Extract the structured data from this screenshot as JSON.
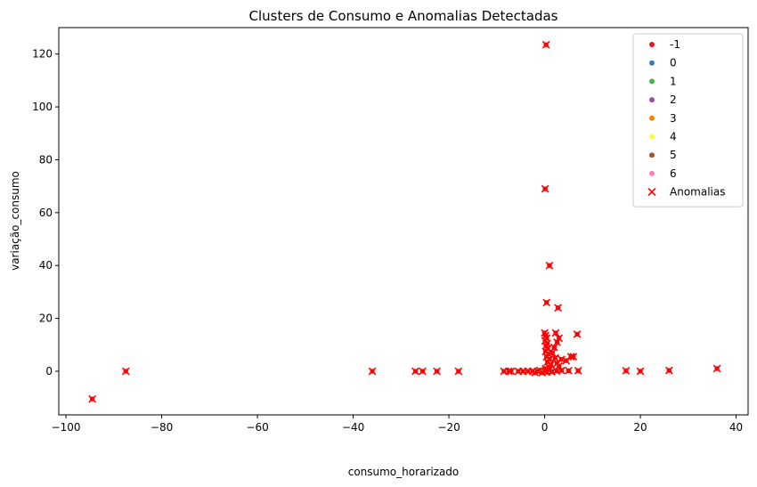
{
  "chart_data": {
    "type": "scatter",
    "title": "Clusters de Consumo e Anomalias Detectadas",
    "xlabel": "consumo_horarizado",
    "ylabel": "variação_consumo",
    "xlim": [
      -101.5,
      42.5
    ],
    "ylim": [
      -16.5,
      130
    ],
    "xticks": [
      -100,
      -80,
      -60,
      -40,
      -20,
      0,
      20,
      40
    ],
    "yticks": [
      0,
      20,
      40,
      60,
      80,
      100,
      120
    ],
    "grid": false,
    "legend_position": "top-right",
    "legend": [
      {
        "label": "-1",
        "color": "#e41a1c",
        "marker": "circle"
      },
      {
        "label": "0",
        "color": "#377eb8",
        "marker": "circle"
      },
      {
        "label": "1",
        "color": "#4daf4a",
        "marker": "circle"
      },
      {
        "label": "2",
        "color": "#984ea3",
        "marker": "circle"
      },
      {
        "label": "3",
        "color": "#ff7f00",
        "marker": "circle"
      },
      {
        "label": "4",
        "color": "#ffff33",
        "marker": "circle"
      },
      {
        "label": "5",
        "color": "#a65628",
        "marker": "circle"
      },
      {
        "label": "6",
        "color": "#f781bf",
        "marker": "circle"
      },
      {
        "label": "Anomalias",
        "color": "#ff0000",
        "marker": "x"
      }
    ],
    "series": [
      {
        "name": "-1",
        "color": "#e41a1c",
        "marker": "circle",
        "points": [
          [
            -94.5,
            -10.5
          ],
          [
            -87.5,
            0
          ],
          [
            -36,
            0
          ],
          [
            -27,
            0
          ],
          [
            -25.5,
            0
          ],
          [
            -22.5,
            0
          ],
          [
            -18,
            0
          ],
          [
            -8.5,
            0
          ],
          [
            -7.5,
            0
          ],
          [
            -7,
            0
          ],
          [
            -5.5,
            0
          ],
          [
            -4.5,
            0
          ],
          [
            -3.5,
            0
          ],
          [
            -2.5,
            0
          ],
          [
            -2,
            -0.5
          ],
          [
            -1.5,
            0
          ],
          [
            -1,
            0.3
          ],
          [
            -0.5,
            -0.5
          ],
          [
            0,
            0
          ],
          [
            0.2,
            1
          ],
          [
            0.5,
            -0.3
          ],
          [
            1,
            0.5
          ],
          [
            0.3,
            123.5
          ],
          [
            0.1,
            69
          ],
          [
            1,
            40
          ],
          [
            0.4,
            26
          ],
          [
            2.8,
            24
          ],
          [
            0,
            14.5
          ],
          [
            0.2,
            13.5
          ],
          [
            0.4,
            12.5
          ],
          [
            0.1,
            11.5
          ],
          [
            0.5,
            10.5
          ],
          [
            0.3,
            9.5
          ],
          [
            0.6,
            8.5
          ],
          [
            0.2,
            7.5
          ],
          [
            0.8,
            6.5
          ],
          [
            0.4,
            5.5
          ],
          [
            1,
            4.5
          ],
          [
            0.6,
            3.5
          ],
          [
            1.3,
            2.5
          ],
          [
            0.9,
            1.5
          ],
          [
            1.6,
            7
          ],
          [
            2,
            9
          ],
          [
            2.3,
            14.5
          ],
          [
            2.6,
            11
          ],
          [
            3,
            12.5
          ],
          [
            2.2,
            5
          ],
          [
            2.6,
            3
          ],
          [
            3,
            2
          ],
          [
            3.5,
            4.5
          ],
          [
            4.5,
            4
          ],
          [
            5.5,
            5.5
          ],
          [
            6,
            5.5
          ],
          [
            6.8,
            14
          ],
          [
            5,
            0.2
          ],
          [
            7,
            0.2
          ],
          [
            3.5,
            0.3
          ],
          [
            2.5,
            0.1
          ],
          [
            1.5,
            -0.2
          ],
          [
            17,
            0.2
          ],
          [
            20,
            0
          ],
          [
            26,
            0.3
          ],
          [
            36,
            1
          ]
        ]
      },
      {
        "name": "Anomalias",
        "color": "#ff0000",
        "marker": "x",
        "points": [
          [
            -94.5,
            -10.5
          ],
          [
            -87.5,
            0
          ],
          [
            -36,
            0
          ],
          [
            -27,
            0
          ],
          [
            -25.5,
            0
          ],
          [
            -22.5,
            0
          ],
          [
            -18,
            0
          ],
          [
            -8.5,
            0
          ],
          [
            -7.5,
            0
          ],
          [
            -7,
            0
          ],
          [
            -5.5,
            0
          ],
          [
            -4.5,
            0
          ],
          [
            -3.5,
            0
          ],
          [
            -2.5,
            0
          ],
          [
            -2,
            -0.5
          ],
          [
            -1.5,
            0
          ],
          [
            -1,
            0.3
          ],
          [
            -0.5,
            -0.5
          ],
          [
            0,
            0
          ],
          [
            0.2,
            1
          ],
          [
            0.5,
            -0.3
          ],
          [
            1,
            0.5
          ],
          [
            0.3,
            123.5
          ],
          [
            0.1,
            69
          ],
          [
            1,
            40
          ],
          [
            0.4,
            26
          ],
          [
            2.8,
            24
          ],
          [
            0,
            14.5
          ],
          [
            0.2,
            13.5
          ],
          [
            0.4,
            12.5
          ],
          [
            0.1,
            11.5
          ],
          [
            0.5,
            10.5
          ],
          [
            0.3,
            9.5
          ],
          [
            0.6,
            8.5
          ],
          [
            0.2,
            7.5
          ],
          [
            0.8,
            6.5
          ],
          [
            0.4,
            5.5
          ],
          [
            1,
            4.5
          ],
          [
            0.6,
            3.5
          ],
          [
            1.3,
            2.5
          ],
          [
            0.9,
            1.5
          ],
          [
            1.6,
            7
          ],
          [
            2,
            9
          ],
          [
            2.3,
            14.5
          ],
          [
            2.6,
            11
          ],
          [
            3,
            12.5
          ],
          [
            2.2,
            5
          ],
          [
            2.6,
            3
          ],
          [
            3,
            2
          ],
          [
            3.5,
            4.5
          ],
          [
            4.5,
            4
          ],
          [
            5.5,
            5.5
          ],
          [
            6,
            5.5
          ],
          [
            6.8,
            14
          ],
          [
            5,
            0.2
          ],
          [
            7,
            0.2
          ],
          [
            3.5,
            0.3
          ],
          [
            2.5,
            0.1
          ],
          [
            1.5,
            -0.2
          ],
          [
            17,
            0.2
          ],
          [
            20,
            0
          ],
          [
            26,
            0.3
          ],
          [
            36,
            1
          ]
        ]
      }
    ]
  }
}
